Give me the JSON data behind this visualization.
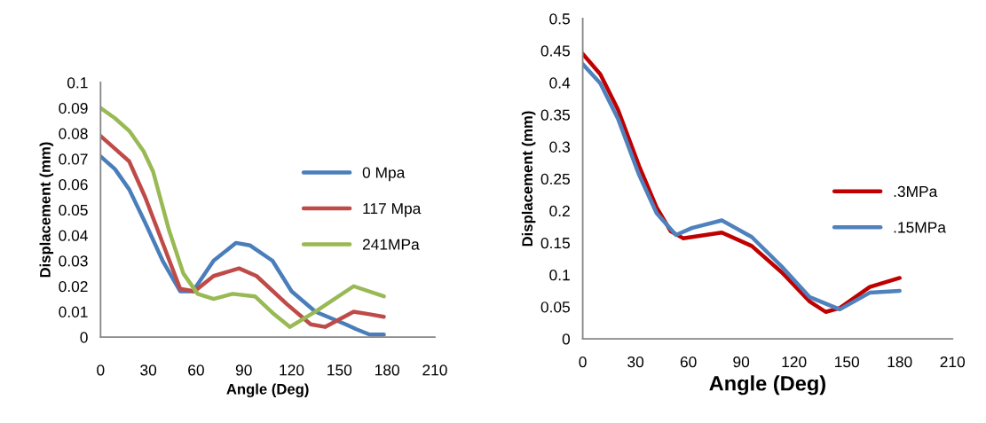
{
  "chart_data": [
    {
      "type": "line",
      "xlabel": "Angle (Deg)",
      "ylabel": "Displacement (mm)",
      "xlim": [
        0,
        210
      ],
      "xticks": [
        0,
        30,
        60,
        90,
        120,
        150,
        180,
        210
      ],
      "ylim": [
        0,
        0.1
      ],
      "yticks": [
        0,
        0.01,
        0.02,
        0.03,
        0.04,
        0.05,
        0.06,
        0.07,
        0.08,
        0.09,
        0.1
      ],
      "grid": false,
      "legend": "right",
      "marker": "none",
      "line_style": "solid",
      "series": [
        {
          "name": "0 Mpa",
          "color": "#4a7ebb",
          "x": [
            0,
            9,
            18,
            28,
            39,
            50,
            58,
            71,
            85,
            94,
            108,
            120,
            135,
            154,
            161,
            169,
            178
          ],
          "values": [
            0.071,
            0.066,
            0.058,
            0.045,
            0.03,
            0.018,
            0.018,
            0.03,
            0.037,
            0.036,
            0.03,
            0.018,
            0.01,
            0.005,
            0.003,
            0.001,
            0.001
          ]
        },
        {
          "name": "117 Mpa",
          "color": "#be4b48",
          "x": [
            0,
            9,
            18,
            28,
            39,
            50,
            59,
            71,
            87,
            98,
            117,
            132,
            141,
            159,
            169,
            178
          ],
          "values": [
            0.079,
            0.074,
            0.069,
            0.055,
            0.037,
            0.019,
            0.018,
            0.024,
            0.027,
            0.024,
            0.013,
            0.005,
            0.004,
            0.01,
            0.009,
            0.008
          ]
        },
        {
          "name": "241MPa",
          "color": "#98b954",
          "x": [
            0,
            9,
            18,
            27,
            33,
            43,
            52,
            61,
            71,
            83,
            97,
            109,
            119,
            135,
            159,
            178
          ],
          "values": [
            0.09,
            0.086,
            0.081,
            0.073,
            0.065,
            0.042,
            0.025,
            0.017,
            0.015,
            0.017,
            0.016,
            0.009,
            0.004,
            0.01,
            0.02,
            0.016
          ]
        }
      ]
    },
    {
      "type": "line",
      "xlabel": "Angle (Deg)",
      "ylabel": "Displacement (mm)",
      "xlim": [
        0,
        210
      ],
      "xticks": [
        0,
        30,
        60,
        90,
        120,
        150,
        180,
        210
      ],
      "ylim": [
        0,
        0.5
      ],
      "yticks": [
        0,
        0.05,
        0.1,
        0.15,
        0.2,
        0.25,
        0.3,
        0.35,
        0.4,
        0.45,
        0.5
      ],
      "grid": false,
      "legend": "right",
      "marker": "none",
      "line_style": "solid",
      "series": [
        {
          "name": ".3MPa",
          "color": "#c00000",
          "x": [
            0,
            10,
            20,
            32,
            42,
            50,
            57,
            79,
            96,
            113,
            129,
            138,
            146,
            163,
            180
          ],
          "values": [
            0.445,
            0.413,
            0.358,
            0.27,
            0.205,
            0.168,
            0.157,
            0.166,
            0.145,
            0.104,
            0.058,
            0.042,
            0.048,
            0.081,
            0.095
          ]
        },
        {
          "name": ".15MPa",
          "color": "#4f81bd",
          "x": [
            0,
            10,
            20,
            32,
            42,
            53,
            62,
            79,
            96,
            113,
            129,
            146,
            163,
            180
          ],
          "values": [
            0.429,
            0.399,
            0.344,
            0.256,
            0.196,
            0.162,
            0.173,
            0.185,
            0.159,
            0.113,
            0.065,
            0.046,
            0.072,
            0.075
          ]
        }
      ]
    }
  ]
}
